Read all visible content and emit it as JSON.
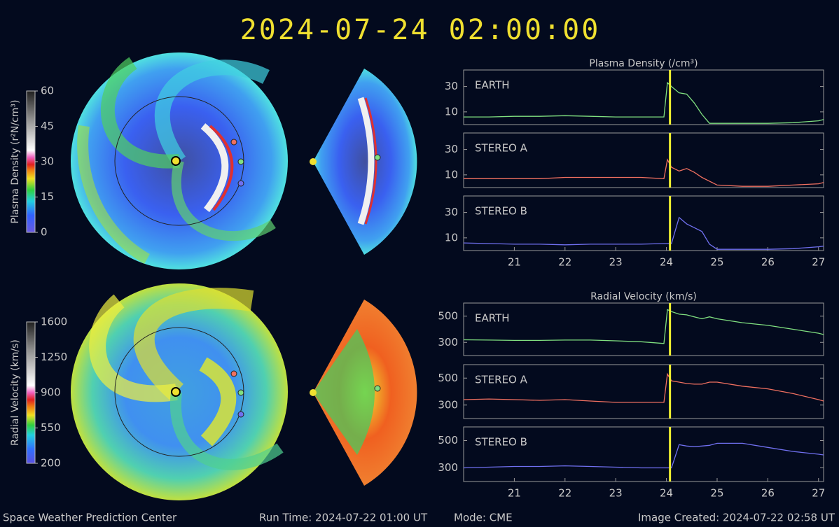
{
  "header": {
    "timestamp": "2024-07-24  02:00:00"
  },
  "colorbars": [
    {
      "label": "Plasma Density (r²N/cm³)",
      "ylim": [
        0,
        60
      ],
      "ticks": [
        0,
        15,
        30,
        45,
        60
      ]
    },
    {
      "label": "Radial Velocity (km/s)",
      "ylim": [
        200,
        1600
      ],
      "ticks": [
        200,
        550,
        900,
        1250,
        1600
      ]
    }
  ],
  "chart_data": [
    {
      "type": "line",
      "title": "Plasma Density (/cm³)",
      "x": [
        20,
        20.5,
        21,
        21.5,
        22,
        22.5,
        23,
        23.5,
        23.95,
        24.02,
        24.1,
        24.25,
        24.4,
        24.55,
        24.7,
        24.85,
        25,
        25.5,
        26,
        26.5,
        27,
        27.1
      ],
      "series": [
        {
          "name": "EARTH",
          "color": "#80e080",
          "values": [
            6,
            6,
            6.5,
            6.5,
            7,
            6.5,
            6,
            6,
            6,
            33,
            30,
            25,
            24,
            17,
            8,
            1,
            1,
            1,
            1,
            1.5,
            3,
            4
          ]
        }
      ],
      "xlim": [
        20,
        27.1
      ],
      "ylim": [
        0,
        43
      ],
      "yticks": [
        10,
        30
      ],
      "vline": 24.07,
      "vline_color": "#f0f030"
    },
    {
      "type": "line",
      "x": [
        20,
        20.5,
        21,
        21.5,
        22,
        22.5,
        23,
        23.5,
        23.95,
        24.02,
        24.1,
        24.25,
        24.4,
        24.55,
        24.7,
        24.85,
        25,
        25.5,
        26,
        26.5,
        27,
        27.1
      ],
      "series": [
        {
          "name": "STEREO A",
          "color": "#f07060",
          "values": [
            7,
            7,
            7,
            7,
            8,
            8,
            8,
            8,
            7,
            22,
            16,
            13,
            15,
            12,
            8,
            5,
            2,
            1,
            1,
            2,
            3,
            4
          ]
        }
      ],
      "xlim": [
        20,
        27.1
      ],
      "ylim": [
        0,
        43
      ],
      "yticks": [
        10,
        30
      ],
      "vline": 24.07,
      "vline_color": "#f0f030"
    },
    {
      "type": "line",
      "x": [
        20,
        20.5,
        21,
        21.5,
        22,
        22.5,
        23,
        23.5,
        23.95,
        24.02,
        24.1,
        24.25,
        24.4,
        24.55,
        24.7,
        24.85,
        25,
        25.5,
        26,
        26.5,
        27,
        27.1
      ],
      "series": [
        {
          "name": "STEREO B",
          "color": "#7070f0",
          "values": [
            6,
            5.5,
            5,
            5,
            4.5,
            5,
            5,
            5,
            5.5,
            5.5,
            5.5,
            26,
            21,
            18,
            15,
            5,
            1,
            1,
            1,
            1.5,
            3,
            3.5
          ]
        }
      ],
      "xlim": [
        20,
        27.1
      ],
      "ylim": [
        0,
        43
      ],
      "yticks": [
        10,
        30
      ],
      "xticks": [
        21,
        22,
        23,
        24,
        25,
        26,
        27
      ],
      "vline": 24.07,
      "vline_color": "#f0f030"
    },
    {
      "type": "line",
      "title": "Radial Velocity (km/s)",
      "x": [
        20,
        20.5,
        21,
        21.5,
        22,
        22.5,
        23,
        23.5,
        23.95,
        24.02,
        24.1,
        24.25,
        24.4,
        24.55,
        24.7,
        24.85,
        25,
        25.5,
        26,
        26.5,
        27,
        27.1
      ],
      "series": [
        {
          "name": "EARTH",
          "color": "#80e080",
          "values": [
            320,
            318,
            315,
            315,
            318,
            318,
            312,
            305,
            292,
            550,
            535,
            515,
            510,
            495,
            480,
            495,
            480,
            450,
            430,
            400,
            370,
            360
          ]
        }
      ],
      "xlim": [
        20,
        27.1
      ],
      "ylim": [
        200,
        600
      ],
      "yticks": [
        300,
        500
      ],
      "vline": 24.07,
      "vline_color": "#f0f030"
    },
    {
      "type": "line",
      "x": [
        20,
        20.5,
        21,
        21.5,
        22,
        22.5,
        23,
        23.5,
        23.95,
        24.02,
        24.1,
        24.25,
        24.4,
        24.55,
        24.7,
        24.85,
        25,
        25.5,
        26,
        26.5,
        27,
        27.1
      ],
      "series": [
        {
          "name": "STEREO A",
          "color": "#f07060",
          "values": [
            340,
            345,
            340,
            335,
            340,
            330,
            320,
            320,
            320,
            530,
            480,
            470,
            460,
            455,
            455,
            470,
            470,
            440,
            420,
            385,
            340,
            330
          ]
        }
      ],
      "xlim": [
        20,
        27.1
      ],
      "ylim": [
        200,
        600
      ],
      "yticks": [
        300,
        500
      ],
      "vline": 24.07,
      "vline_color": "#f0f030"
    },
    {
      "type": "line",
      "x": [
        20,
        20.5,
        21,
        21.5,
        22,
        22.5,
        23,
        23.5,
        23.95,
        24.02,
        24.1,
        24.25,
        24.4,
        24.55,
        24.7,
        24.85,
        25,
        25.5,
        26,
        26.5,
        27,
        27.1
      ],
      "series": [
        {
          "name": "STEREO B",
          "color": "#7070f0",
          "values": [
            300,
            305,
            310,
            310,
            315,
            310,
            305,
            300,
            300,
            300,
            300,
            470,
            460,
            455,
            460,
            465,
            480,
            480,
            450,
            420,
            400,
            395
          ]
        }
      ],
      "xlim": [
        20,
        27.1
      ],
      "ylim": [
        200,
        600
      ],
      "yticks": [
        300,
        500
      ],
      "xticks": [
        21,
        22,
        23,
        24,
        25,
        26,
        27
      ],
      "vline": 24.07,
      "vline_color": "#f0f030"
    }
  ],
  "footer": {
    "left": "Space Weather Prediction Center",
    "run_time": "Run Time: 2024-07-22 01:00 UT",
    "mode": "Mode: CME",
    "created": "Image Created: 2024-07-22 02:58 UT"
  }
}
